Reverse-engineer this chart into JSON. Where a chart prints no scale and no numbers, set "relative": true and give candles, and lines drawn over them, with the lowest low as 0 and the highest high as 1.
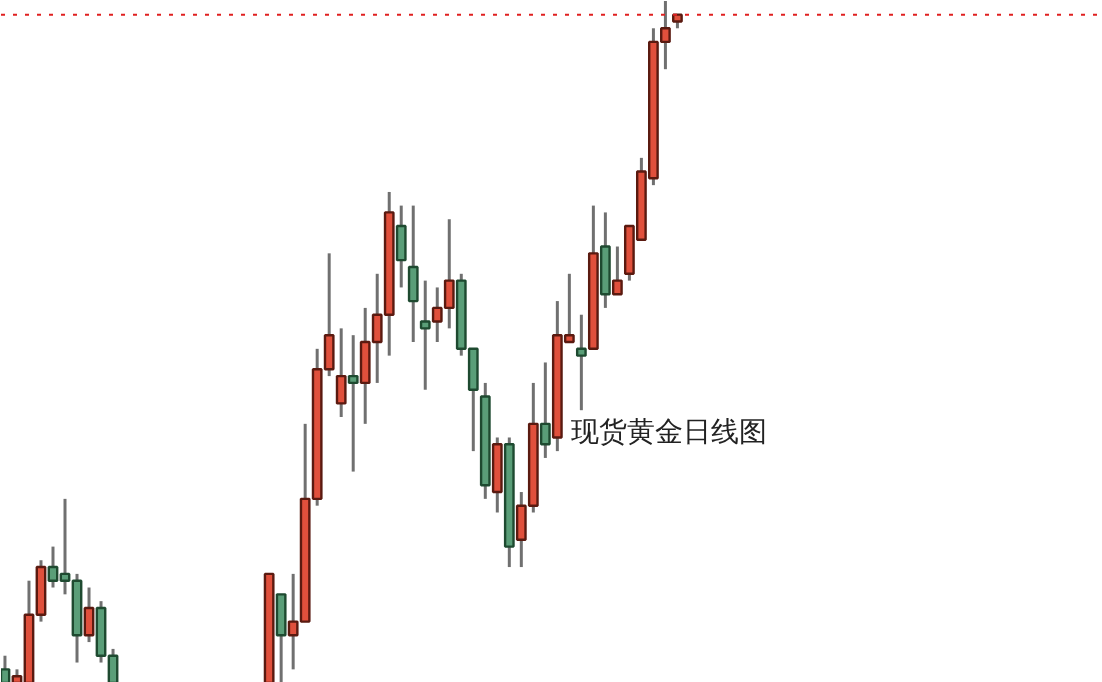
{
  "chart_data": {
    "type": "candlestick",
    "relative": true,
    "categories": [
      null,
      null,
      null,
      null,
      null,
      null,
      null,
      null,
      null,
      null,
      null,
      null,
      null,
      null,
      null,
      null,
      null,
      null,
      null,
      null,
      null,
      null,
      null,
      null,
      null,
      null,
      null,
      null,
      null,
      null,
      null,
      null,
      null,
      null,
      null,
      null,
      null,
      null,
      null,
      null,
      null,
      null,
      null,
      null,
      null,
      null,
      null,
      null,
      null,
      null,
      null,
      null,
      null,
      null,
      null,
      null,
      null
    ],
    "ohlc": [
      [
        0.02,
        0.04,
        0,
        0
      ],
      [
        0,
        0.02,
        0,
        0.01
      ],
      [
        0,
        0.15,
        0,
        0.1
      ],
      [
        0.1,
        0.18,
        0.09,
        0.17
      ],
      [
        0.17,
        0.2,
        0.14,
        0.15
      ],
      [
        0.16,
        0.27,
        0.13,
        0.15
      ],
      [
        0.15,
        0.16,
        0.03,
        0.07
      ],
      [
        0.07,
        0.14,
        0.06,
        0.11
      ],
      [
        0.11,
        0.12,
        0.03,
        0.04
      ],
      [
        0.04,
        0.05,
        0,
        0
      ],
      null,
      null,
      null,
      null,
      null,
      null,
      null,
      null,
      null,
      null,
      null,
      null,
      [
        0,
        0.16,
        0,
        0.16
      ],
      [
        0.13,
        0.13,
        0,
        0.07
      ],
      [
        0.07,
        0.16,
        0.02,
        0.09
      ],
      [
        0.09,
        0.38,
        0.09,
        0.27
      ],
      [
        0.27,
        0.49,
        0.26,
        0.46
      ],
      [
        0.46,
        0.63,
        0.45,
        0.51
      ],
      [
        0.41,
        0.52,
        0.39,
        0.45
      ],
      [
        0.45,
        0.51,
        0.31,
        0.44
      ],
      [
        0.44,
        0.55,
        0.38,
        0.5
      ],
      [
        0.5,
        0.6,
        0.44,
        0.54
      ],
      [
        0.54,
        0.72,
        0.48,
        0.69
      ],
      [
        0.67,
        0.7,
        0.58,
        0.62
      ],
      [
        0.61,
        0.7,
        0.5,
        0.56
      ],
      [
        0.53,
        0.59,
        0.43,
        0.52
      ],
      [
        0.53,
        0.58,
        0.5,
        0.55
      ],
      [
        0.55,
        0.68,
        0.52,
        0.59
      ],
      [
        0.59,
        0.6,
        0.48,
        0.49
      ],
      [
        0.49,
        0.49,
        0.34,
        0.43
      ],
      [
        0.42,
        0.44,
        0.27,
        0.29
      ],
      [
        0.28,
        0.36,
        0.25,
        0.35
      ],
      [
        0.35,
        0.36,
        0.17,
        0.2
      ],
      [
        0.21,
        0.28,
        0.17,
        0.26
      ],
      [
        0.26,
        0.44,
        0.25,
        0.38
      ],
      [
        0.38,
        0.47,
        0.33,
        0.35
      ],
      [
        0.36,
        0.56,
        0.34,
        0.51
      ],
      [
        0.5,
        0.6,
        0.5,
        0.51
      ],
      [
        0.49,
        0.54,
        0.4,
        0.48
      ],
      [
        0.49,
        0.7,
        0.49,
        0.63
      ],
      [
        0.64,
        0.69,
        0.55,
        0.57
      ],
      [
        0.57,
        0.64,
        0.57,
        0.59
      ],
      [
        0.6,
        0.67,
        0.59,
        0.67
      ],
      [
        0.65,
        0.77,
        0.65,
        0.75
      ],
      [
        0.74,
        0.96,
        0.73,
        0.94
      ],
      [
        0.94,
        1,
        0.9,
        0.96
      ],
      [
        0.97,
        0.98,
        0.96,
        0.98
      ]
    ],
    "colors": [
      "#5a9e78",
      "#e0503c",
      "#e0503c",
      "#e0503c",
      "#5a9e78",
      "#5a9e78",
      "#5a9e78",
      "#e0503c",
      "#5a9e78",
      "#5a9e78",
      null,
      null,
      null,
      null,
      null,
      null,
      null,
      null,
      null,
      null,
      null,
      null,
      "#e0503c",
      "#5a9e78",
      "#e0503c",
      "#e0503c",
      "#e0503c",
      "#e0503c",
      "#e0503c",
      "#5a9e78",
      "#e0503c",
      "#e0503c",
      "#e0503c",
      "#5a9e78",
      "#5a9e78",
      "#5a9e78",
      "#e0503c",
      "#e0503c",
      "#5a9e78",
      "#5a9e78",
      "#5a9e78",
      "#e0503c",
      "#5a9e78",
      "#e0503c",
      "#e0503c",
      "#5a9e78",
      "#e0503c",
      "#e0503c",
      "#5a9e78",
      "#e0503c",
      "#5a9e78",
      "#e0503c",
      "#e0503c",
      "#e0503c",
      "#e0503c",
      "#e0503c",
      "#e0503c"
    ],
    "ref_lines": [
      {
        "axis": "y",
        "value": 0.98,
        "label": null,
        "color": "#e02020",
        "line_style": "dotted"
      }
    ],
    "annotations": [
      "现货黄金日线图"
    ]
  }
}
